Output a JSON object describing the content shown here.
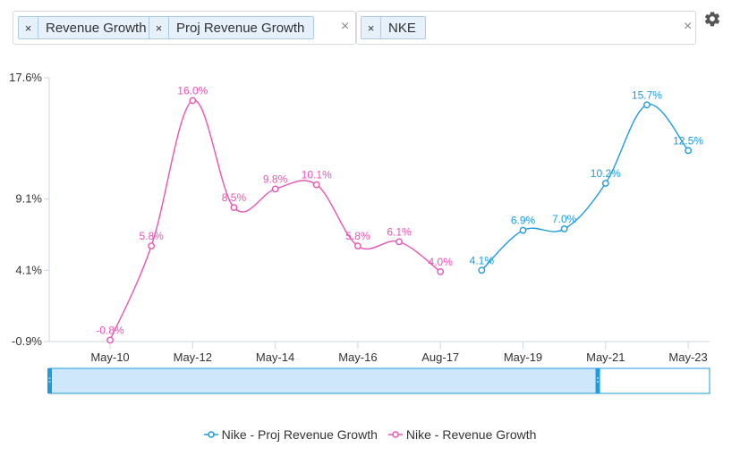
{
  "filters": {
    "metric_chips": [
      {
        "remove": "×",
        "label": "Revenue Growth"
      },
      {
        "remove": "×",
        "label": "Proj Revenue Growth"
      }
    ],
    "metric_clear": "×",
    "company_chips": [
      {
        "remove": "×",
        "label": "NKE"
      }
    ],
    "company_clear": "×"
  },
  "settings_icon": "gear-icon",
  "colors": {
    "revenue": "#e754b8",
    "proj": "#1d9be0",
    "navigator_fill": "#cfe7fb",
    "navigator_border": "#1d9be0"
  },
  "chart_data": {
    "type": "line",
    "x_tick_labels": [
      "May-10",
      "May-12",
      "May-14",
      "May-16",
      "Aug-17",
      "May-19",
      "May-21",
      "May-23"
    ],
    "y_tick_labels": [
      "17.6%",
      "9.1%",
      "4.1%",
      "-0.9%"
    ],
    "y_ticks": [
      17.6,
      9.1,
      4.1,
      -0.9
    ],
    "ylim": [
      -0.9,
      17.6
    ],
    "grid": false,
    "legend_position": "bottom",
    "series": [
      {
        "name": "Nike - Revenue Growth",
        "color": "#e754b8",
        "x": [
          "May-10",
          "May-11",
          "May-12",
          "May-13",
          "May-14",
          "May-15",
          "May-16",
          "May-17",
          "Aug-17"
        ],
        "values": [
          -0.8,
          5.8,
          16.0,
          8.5,
          9.8,
          10.1,
          5.8,
          6.1,
          4.0
        ],
        "labels": [
          "-0.8%",
          "5.8%",
          "16.0%",
          "8.5%",
          "9.8%",
          "10.1%",
          "5.8%",
          "6.1%",
          "4.0%"
        ]
      },
      {
        "name": "Nike - Proj Revenue Growth",
        "color": "#1d9be0",
        "x": [
          "May-18",
          "May-19",
          "May-20",
          "May-21",
          "May-22",
          "May-23"
        ],
        "values": [
          4.1,
          6.9,
          7.0,
          10.2,
          15.7,
          12.5
        ],
        "labels": [
          "4.1%",
          "6.9%",
          "7.0%",
          "10.2%",
          "15.7%",
          "12.5%"
        ]
      }
    ],
    "legend": [
      "Nike - Proj Revenue Growth",
      "Nike - Revenue Growth"
    ],
    "navigator_selection_fraction": 0.83
  }
}
